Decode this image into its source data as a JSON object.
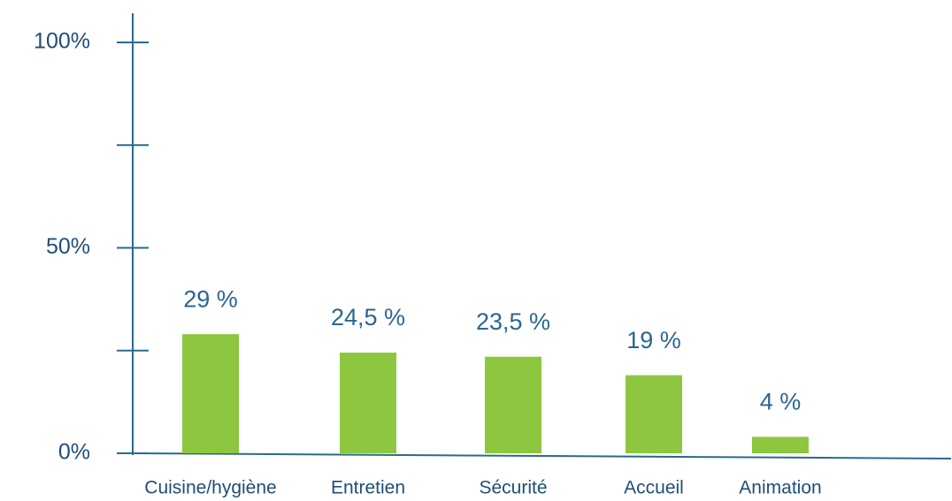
{
  "chart_data": {
    "type": "bar",
    "categories": [
      "Cuisine/hygiène",
      "Entretien",
      "Sécurité",
      "Accueil",
      "Animation"
    ],
    "values": [
      29,
      24.5,
      23.5,
      19,
      4
    ],
    "value_labels": [
      "29 %",
      "24,5 %",
      "23,5 %",
      "19 %",
      "4 %"
    ],
    "color": "#8dc63f",
    "ylim": [
      0,
      100
    ],
    "yticks": [
      {
        "value": 0,
        "label": "0%"
      },
      {
        "value": 25,
        "label": null
      },
      {
        "value": 50,
        "label": "50%"
      },
      {
        "value": 75,
        "label": null
      },
      {
        "value": 100,
        "label": "100%"
      }
    ],
    "grid": false
  }
}
